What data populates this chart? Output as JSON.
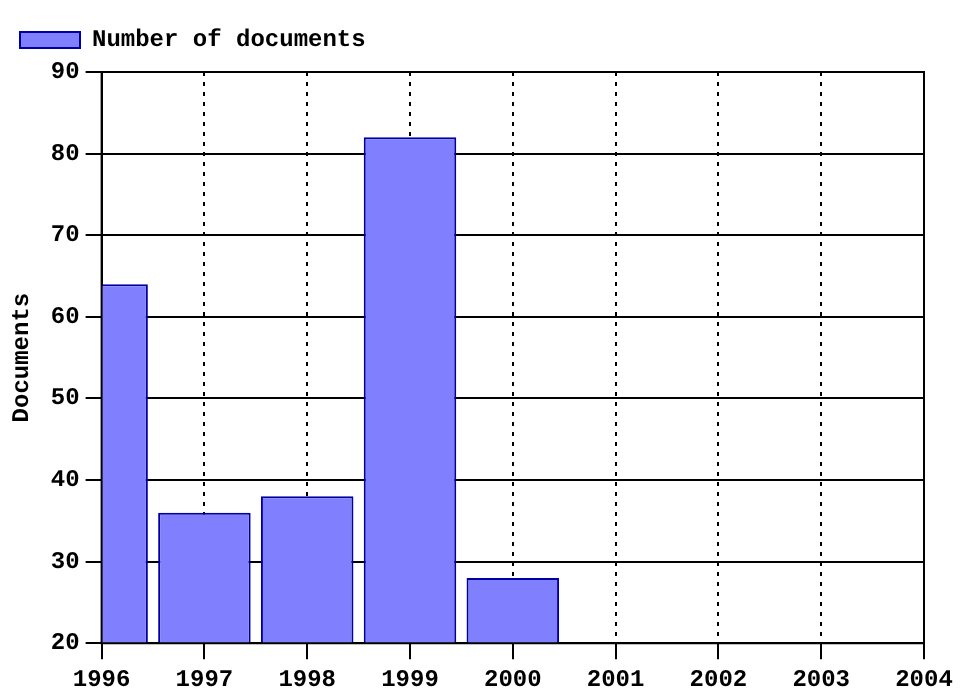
{
  "chart_data": {
    "type": "bar",
    "ylabel": "Documents",
    "x": [
      1996,
      1997,
      1998,
      1999,
      2000
    ],
    "series": [
      {
        "name": "Number of documents",
        "color": "#8080ff",
        "values": [
          64,
          36,
          38,
          82,
          28
        ]
      }
    ],
    "xlim": [
      1996,
      2004
    ],
    "xticks": [
      1996,
      1997,
      1998,
      1999,
      2000,
      2001,
      2002,
      2003,
      2004
    ],
    "ylim": [
      20,
      90
    ],
    "yticks": [
      20,
      30,
      40,
      50,
      60,
      70,
      80,
      90
    ],
    "grid": true,
    "legend": "top left"
  }
}
